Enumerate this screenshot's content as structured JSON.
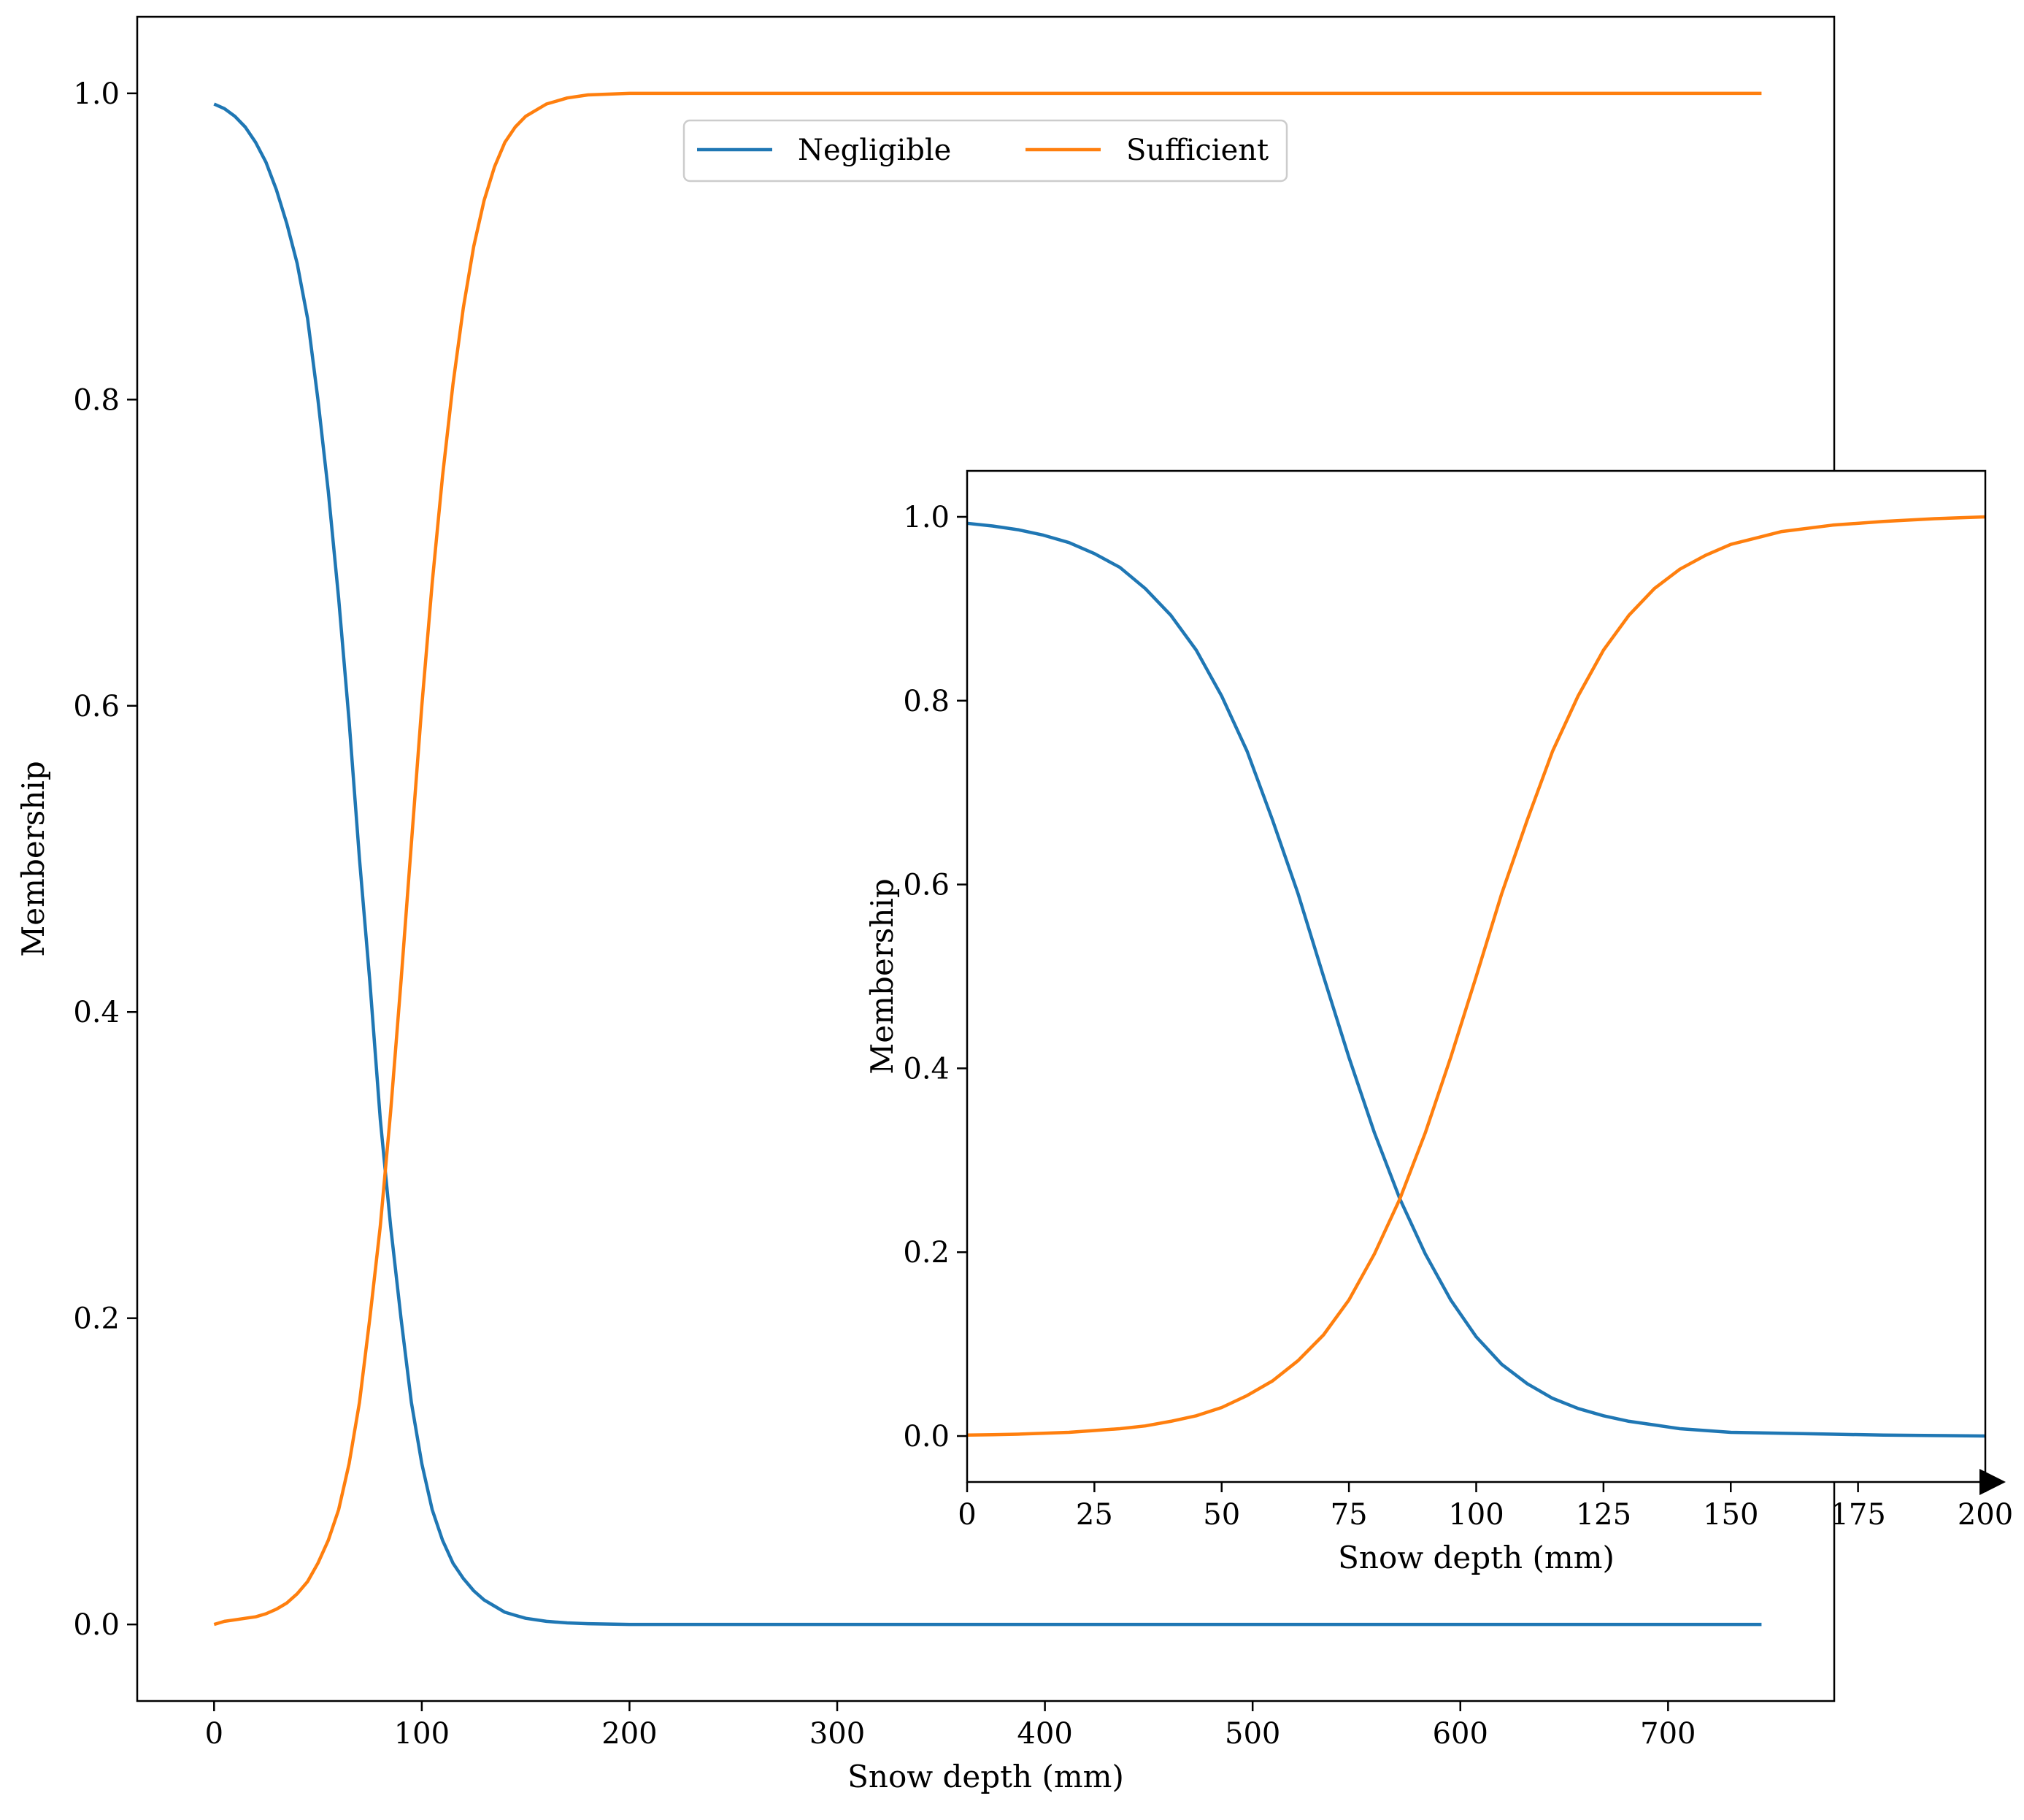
{
  "chart_data": [
    {
      "type": "line",
      "xlabel": "Snow depth (mm)",
      "ylabel": "Membership",
      "xlim": [
        -37,
        780
      ],
      "ylim": [
        -0.05,
        1.05
      ],
      "xticks": [
        0,
        100,
        200,
        300,
        400,
        500,
        600,
        700
      ],
      "xtick_labels": [
        "0",
        "100",
        "200",
        "300",
        "400",
        "500",
        "600",
        "700"
      ],
      "yticks": [
        0.0,
        0.2,
        0.4,
        0.6,
        0.8,
        1.0
      ],
      "ytick_labels": [
        "0.0",
        "0.2",
        "0.4",
        "0.6",
        "0.8",
        "1.0"
      ],
      "grid": false,
      "legend": "upper center",
      "series": [
        {
          "name": "Negligible",
          "color": "#1f77b4",
          "x": [
            0,
            5,
            10,
            15,
            20,
            25,
            30,
            35,
            40,
            45,
            50,
            55,
            60,
            65,
            70,
            75,
            80,
            85,
            90,
            95,
            100,
            105,
            110,
            115,
            120,
            125,
            130,
            135,
            140,
            145,
            150,
            160,
            170,
            180,
            200,
            250,
            300,
            400,
            500,
            600,
            700,
            745
          ],
          "y": [
            0.993,
            0.99,
            0.985,
            0.978,
            0.968,
            0.955,
            0.937,
            0.915,
            0.889,
            0.853,
            0.8,
            0.74,
            0.67,
            0.59,
            0.5,
            0.42,
            0.33,
            0.26,
            0.2,
            0.145,
            0.105,
            0.075,
            0.055,
            0.04,
            0.03,
            0.022,
            0.016,
            0.012,
            0.008,
            0.006,
            0.004,
            0.002,
            0.001,
            0.0005,
            0.0,
            0.0,
            0.0,
            0.0,
            0.0,
            0.0,
            0.0,
            0.0
          ]
        },
        {
          "name": "Sufficient",
          "color": "#ff7f0e",
          "x": [
            0,
            5,
            10,
            15,
            20,
            25,
            30,
            35,
            40,
            45,
            50,
            55,
            60,
            65,
            70,
            75,
            80,
            85,
            90,
            95,
            100,
            105,
            110,
            115,
            120,
            125,
            130,
            135,
            140,
            145,
            150,
            160,
            170,
            180,
            200,
            250,
            300,
            400,
            500,
            600,
            700,
            745
          ],
          "y": [
            0.0,
            0.002,
            0.003,
            0.004,
            0.005,
            0.007,
            0.01,
            0.014,
            0.02,
            0.028,
            0.04,
            0.055,
            0.075,
            0.105,
            0.145,
            0.2,
            0.26,
            0.335,
            0.42,
            0.51,
            0.6,
            0.68,
            0.75,
            0.81,
            0.86,
            0.9,
            0.93,
            0.952,
            0.968,
            0.978,
            0.985,
            0.993,
            0.997,
            0.999,
            1.0,
            1.0,
            1.0,
            1.0,
            1.0,
            1.0,
            1.0,
            1.0
          ]
        }
      ]
    },
    {
      "type": "line",
      "xlabel": "Snow depth (mm)",
      "ylabel": "Membership",
      "xlim": [
        0,
        200
      ],
      "ylim": [
        -0.05,
        1.05
      ],
      "xticks": [
        0,
        25,
        50,
        75,
        100,
        125,
        150,
        175,
        200
      ],
      "xtick_labels": [
        "0",
        "25",
        "50",
        "75",
        "100",
        "125",
        "150",
        "175",
        "200"
      ],
      "yticks": [
        0.0,
        0.2,
        0.4,
        0.6,
        0.8,
        1.0
      ],
      "ytick_labels": [
        "0.0",
        "0.2",
        "0.4",
        "0.6",
        "0.8",
        "1.0"
      ],
      "grid": false,
      "series": [
        {
          "color": "#1f77b4",
          "x": [
            0,
            5,
            10,
            15,
            20,
            25,
            30,
            35,
            40,
            45,
            50,
            55,
            60,
            65,
            70,
            75,
            80,
            85,
            90,
            95,
            100,
            105,
            110,
            115,
            120,
            125,
            130,
            135,
            140,
            145,
            150,
            160,
            170,
            180,
            190,
            200
          ],
          "y": [
            0.993,
            0.99,
            0.986,
            0.98,
            0.972,
            0.96,
            0.945,
            0.922,
            0.893,
            0.855,
            0.805,
            0.745,
            0.67,
            0.59,
            0.5,
            0.412,
            0.33,
            0.258,
            0.198,
            0.148,
            0.108,
            0.078,
            0.057,
            0.041,
            0.03,
            0.022,
            0.016,
            0.012,
            0.008,
            0.006,
            0.004,
            0.003,
            0.002,
            0.001,
            0.0005,
            0.0
          ]
        },
        {
          "color": "#ff7f0e",
          "x": [
            0,
            5,
            10,
            15,
            20,
            25,
            30,
            35,
            40,
            45,
            50,
            55,
            60,
            65,
            70,
            75,
            80,
            85,
            90,
            95,
            100,
            105,
            110,
            115,
            120,
            125,
            130,
            135,
            140,
            145,
            150,
            160,
            170,
            180,
            190,
            200
          ],
          "y": [
            0.001,
            0.0015,
            0.002,
            0.003,
            0.004,
            0.006,
            0.008,
            0.011,
            0.016,
            0.022,
            0.031,
            0.044,
            0.06,
            0.082,
            0.11,
            0.148,
            0.198,
            0.258,
            0.33,
            0.412,
            0.5,
            0.59,
            0.67,
            0.745,
            0.805,
            0.855,
            0.893,
            0.922,
            0.943,
            0.958,
            0.97,
            0.984,
            0.991,
            0.995,
            0.998,
            1.0
          ]
        }
      ]
    }
  ]
}
